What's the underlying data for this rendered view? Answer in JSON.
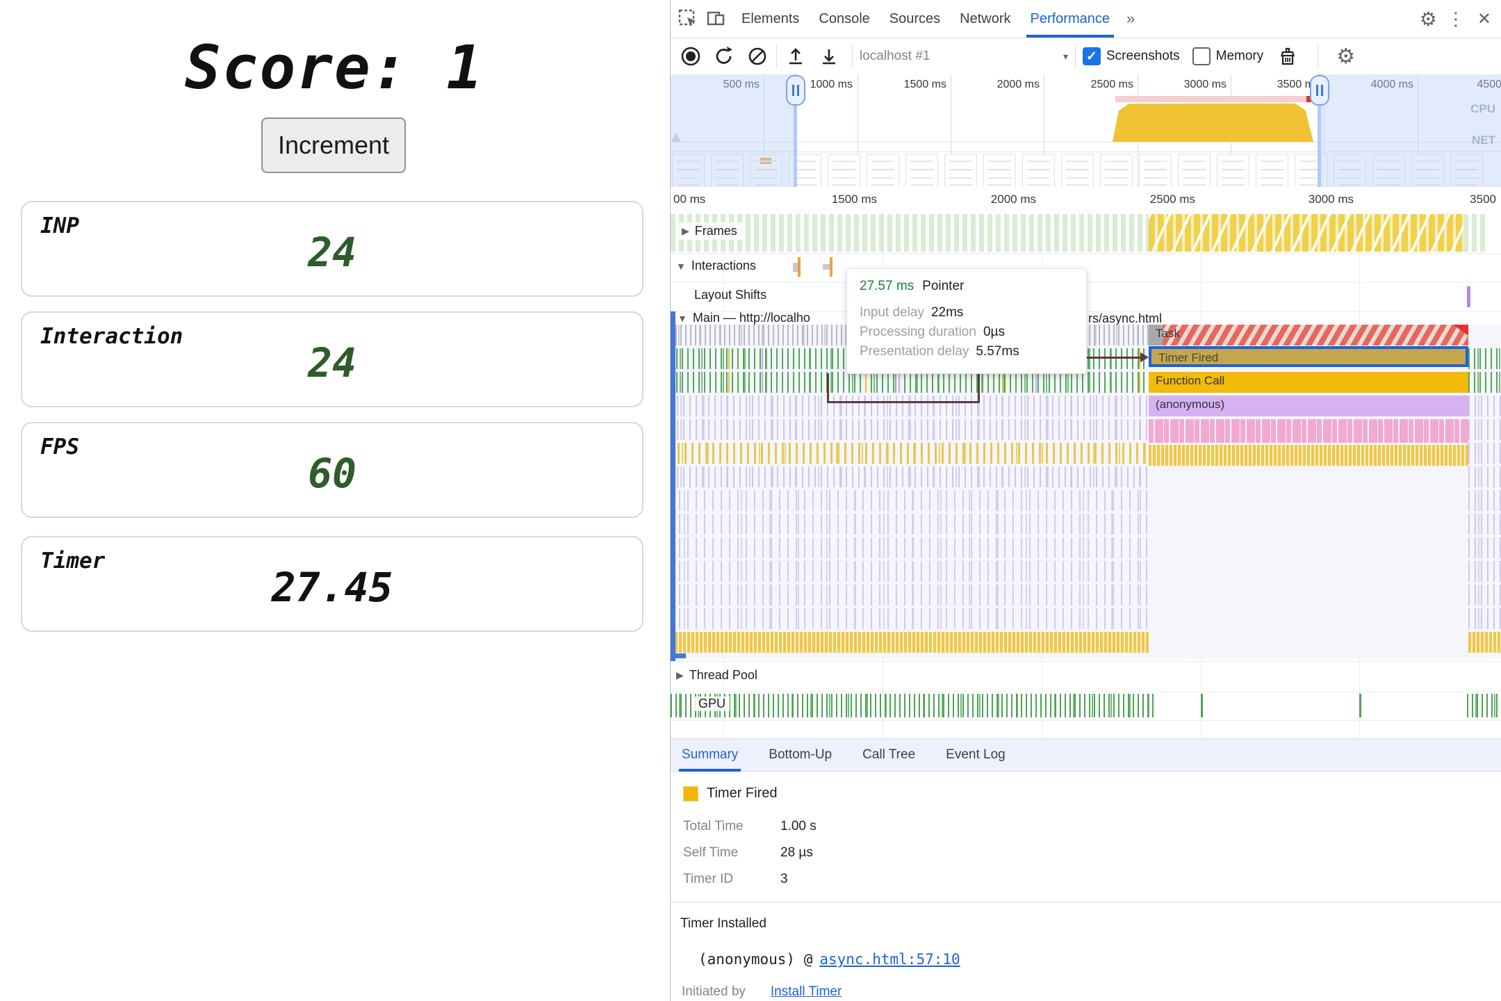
{
  "page": {
    "score_label": "Score: 1",
    "increment_label": "Increment",
    "metrics": [
      {
        "label": "INP",
        "value": "24"
      },
      {
        "label": "Interaction",
        "value": "24"
      },
      {
        "label": "FPS",
        "value": "60"
      },
      {
        "label": "Timer",
        "value": "27.45"
      }
    ],
    "value_color_green": "#2e5c2a",
    "value_color_black": "#111111"
  },
  "devtools": {
    "tabs": [
      "Elements",
      "Console",
      "Sources",
      "Network",
      "Performance"
    ],
    "active_tab": "Performance",
    "more_tabs_glyph": "»",
    "kebab_glyph": "⋮",
    "close_glyph": "✕",
    "gear_glyph": "⚙",
    "toolbar": {
      "history_selected": "localhost #1",
      "screenshots_label": "Screenshots",
      "memory_label": "Memory",
      "screenshots_checked": true,
      "memory_checked": false,
      "check_glyph": "✓",
      "caret_glyph": "▾"
    },
    "overview_ruler": [
      "500 ms",
      "1000 ms",
      "1500 ms",
      "2000 ms",
      "2500 ms",
      "3000 ms",
      "3500 ms",
      "4000 ms",
      "4500"
    ],
    "cpu_label": "CPU",
    "net_label": "NET",
    "detail_ruler": [
      "00 ms",
      "1500 ms",
      "2000 ms",
      "2500 ms",
      "3000 ms",
      "3500"
    ],
    "tracks": {
      "frames": "Frames",
      "interactions": "Interactions",
      "layout_shifts": "Layout Shifts",
      "main_left": "Main — http://localho",
      "main_right": "rs/async.html",
      "thread_pool": "Thread Pool",
      "gpu": "GPU",
      "collapsed_glyph": "▶",
      "expanded_glyph": "▼"
    },
    "flame": {
      "task": "Task",
      "timer_fired": "Timer Fired",
      "function_call": "Function Call",
      "anonymous": "(anonymous)",
      "timer_fired_color": "#f2b806",
      "function_call_color": "#f2ba09",
      "anonymous_color": "#d7b2f0",
      "task_stripe_color": "#e5685c",
      "selected_border_color": "#1a63d8"
    },
    "tooltip": {
      "duration": "27.57 ms",
      "title": "Pointer",
      "duration_color": "#188038",
      "rows": [
        {
          "label": "Input delay",
          "value": "22ms"
        },
        {
          "label": "Processing duration",
          "value": "0µs"
        },
        {
          "label": "Presentation delay",
          "value": "5.57ms"
        }
      ]
    },
    "summary": {
      "tabs": [
        "Summary",
        "Bottom-Up",
        "Call Tree",
        "Event Log"
      ],
      "active_tab": "Summary",
      "heading": "Timer Fired",
      "heading_swatch_color": "#f2b806",
      "rows": [
        {
          "label": "Total Time",
          "value": "1.00 s"
        },
        {
          "label": "Self Time",
          "value": "28 µs"
        },
        {
          "label": "Timer ID",
          "value": "3"
        }
      ],
      "installed_heading": "Timer Installed",
      "installed_fn": "(anonymous) @",
      "installed_link": "async.html:57:10",
      "initiated_label": "Initiated by",
      "initiated_link": "Install Timer",
      "link_color": "#1a63d8"
    }
  }
}
